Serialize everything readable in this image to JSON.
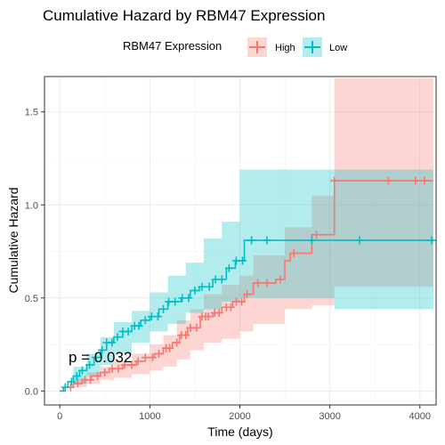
{
  "chart_data": {
    "type": "line",
    "subtype": "cumulative-hazard-step",
    "title": "Cumulative Hazard by RBM47 Expression",
    "xlabel": "Time (days)",
    "ylabel": "Cumulative Hazard",
    "xlim": [
      -170,
      4180
    ],
    "ylim": [
      -0.075,
      1.69
    ],
    "x_ticks": [
      0,
      1000,
      2000,
      3000,
      4000
    ],
    "x_tick_labels": [
      "0",
      "1000",
      "2000",
      "3000",
      "4000"
    ],
    "y_ticks": [
      0.0,
      0.5,
      1.0,
      1.5
    ],
    "y_tick_labels": [
      "0.0",
      "0.5",
      "1.0",
      "1.5"
    ],
    "grid": true,
    "legend": {
      "title": "RBM47 Expression",
      "position": "top",
      "entries": [
        "High",
        "Low"
      ]
    },
    "annotation": "p = 0.032",
    "series": [
      {
        "name": "High",
        "color": "#f8766d",
        "fill": "#f8766d",
        "steps": [
          [
            0,
            0
          ],
          [
            60,
            0.02
          ],
          [
            150,
            0.04
          ],
          [
            250,
            0.06
          ],
          [
            350,
            0.08
          ],
          [
            450,
            0.1
          ],
          [
            550,
            0.12
          ],
          [
            700,
            0.14
          ],
          [
            850,
            0.16
          ],
          [
            950,
            0.18
          ],
          [
            1050,
            0.2
          ],
          [
            1150,
            0.23
          ],
          [
            1250,
            0.26
          ],
          [
            1330,
            0.3
          ],
          [
            1420,
            0.34
          ],
          [
            1560,
            0.4
          ],
          [
            1700,
            0.42
          ],
          [
            1800,
            0.45
          ],
          [
            1920,
            0.48
          ],
          [
            2050,
            0.52
          ],
          [
            2150,
            0.58
          ],
          [
            2400,
            0.6
          ],
          [
            2500,
            0.7
          ],
          [
            2560,
            0.74
          ],
          [
            2800,
            0.84
          ],
          [
            3050,
            1.13
          ],
          [
            4150,
            1.13
          ]
        ],
        "lower": [
          [
            0,
            0
          ],
          [
            150,
            0.02
          ],
          [
            300,
            0.04
          ],
          [
            450,
            0.06
          ],
          [
            600,
            0.07
          ],
          [
            800,
            0.09
          ],
          [
            1000,
            0.11
          ],
          [
            1150,
            0.13
          ],
          [
            1300,
            0.17
          ],
          [
            1450,
            0.22
          ],
          [
            1600,
            0.26
          ],
          [
            1800,
            0.28
          ],
          [
            2000,
            0.32
          ],
          [
            2150,
            0.36
          ],
          [
            2500,
            0.44
          ],
          [
            2800,
            0.46
          ],
          [
            3050,
            0.56
          ],
          [
            4150,
            0.56
          ]
        ],
        "upper": [
          [
            0,
            0
          ],
          [
            150,
            0.07
          ],
          [
            300,
            0.1
          ],
          [
            450,
            0.13
          ],
          [
            600,
            0.16
          ],
          [
            800,
            0.2
          ],
          [
            1000,
            0.25
          ],
          [
            1150,
            0.3
          ],
          [
            1300,
            0.38
          ],
          [
            1450,
            0.44
          ],
          [
            1600,
            0.52
          ],
          [
            1800,
            0.57
          ],
          [
            2000,
            0.62
          ],
          [
            2150,
            0.73
          ],
          [
            2500,
            0.88
          ],
          [
            2800,
            1.05
          ],
          [
            3050,
            1.68
          ],
          [
            4150,
            1.68
          ]
        ],
        "censor_x": [
          120,
          200,
          280,
          340,
          420,
          500,
          580,
          650,
          720,
          800,
          870,
          950,
          1030,
          1100,
          1180,
          1220,
          1300,
          1350,
          1400,
          1450,
          1520,
          1580,
          1620,
          1650,
          1720,
          1770,
          1850,
          1900,
          1960,
          2020,
          2080,
          2200,
          2300,
          2450,
          2600,
          2850,
          3050,
          3650,
          3950,
          4050
        ]
      },
      {
        "name": "Low",
        "color": "#00bfc4",
        "fill": "#00bfc4",
        "steps": [
          [
            0,
            0
          ],
          [
            40,
            0.02
          ],
          [
            90,
            0.05
          ],
          [
            150,
            0.08
          ],
          [
            220,
            0.11
          ],
          [
            300,
            0.14
          ],
          [
            380,
            0.18
          ],
          [
            450,
            0.22
          ],
          [
            520,
            0.26
          ],
          [
            600,
            0.29
          ],
          [
            700,
            0.32
          ],
          [
            800,
            0.35
          ],
          [
            900,
            0.38
          ],
          [
            1000,
            0.4
          ],
          [
            1100,
            0.44
          ],
          [
            1200,
            0.48
          ],
          [
            1350,
            0.5
          ],
          [
            1450,
            0.54
          ],
          [
            1550,
            0.56
          ],
          [
            1700,
            0.6
          ],
          [
            1850,
            0.66
          ],
          [
            1950,
            0.7
          ],
          [
            2050,
            0.81
          ],
          [
            4150,
            0.81
          ]
        ],
        "lower": [
          [
            0,
            0
          ],
          [
            150,
            0.04
          ],
          [
            300,
            0.08
          ],
          [
            450,
            0.14
          ],
          [
            600,
            0.2
          ],
          [
            800,
            0.26
          ],
          [
            1000,
            0.32
          ],
          [
            1200,
            0.36
          ],
          [
            1400,
            0.42
          ],
          [
            1600,
            0.44
          ],
          [
            1800,
            0.48
          ],
          [
            2000,
            0.5
          ],
          [
            2300,
            0.5
          ],
          [
            2800,
            0.5
          ],
          [
            3050,
            0.44
          ],
          [
            4150,
            0.44
          ]
        ],
        "upper": [
          [
            0,
            0
          ],
          [
            150,
            0.13
          ],
          [
            300,
            0.2
          ],
          [
            450,
            0.29
          ],
          [
            600,
            0.37
          ],
          [
            800,
            0.43
          ],
          [
            1000,
            0.53
          ],
          [
            1200,
            0.62
          ],
          [
            1400,
            0.69
          ],
          [
            1600,
            0.82
          ],
          [
            1800,
            0.91
          ],
          [
            2000,
            1.19
          ],
          [
            2300,
            1.19
          ],
          [
            2800,
            1.19
          ],
          [
            3050,
            1.19
          ],
          [
            4150,
            1.19
          ]
        ],
        "censor_x": [
          60,
          130,
          190,
          250,
          330,
          400,
          470,
          520,
          580,
          640,
          700,
          760,
          830,
          880,
          950,
          1020,
          1090,
          1150,
          1210,
          1280,
          1360,
          1430,
          1500,
          1580,
          1660,
          1730,
          1800,
          1880,
          1960,
          2030,
          2130,
          2300,
          2800,
          3330,
          4130
        ]
      }
    ]
  }
}
